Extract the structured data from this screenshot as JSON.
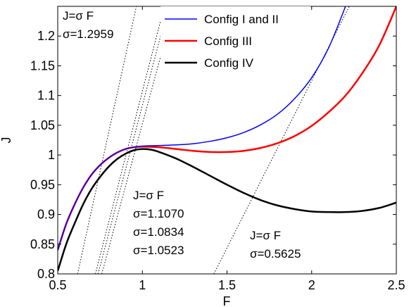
{
  "chart_data": {
    "type": "line",
    "xlabel": "F",
    "ylabel": "J",
    "xlim": [
      0.5,
      2.5
    ],
    "ylim": [
      0.8,
      1.25
    ],
    "xticks": [
      0.5,
      1,
      1.5,
      2,
      2.5
    ],
    "xtick_labels": [
      "0.5",
      "1",
      "1.5",
      "2",
      "2.5"
    ],
    "yticks": [
      0.8,
      0.85,
      0.9,
      0.95,
      1.0,
      1.05,
      1.1,
      1.15,
      1.2
    ],
    "ytick_labels": [
      "0.8",
      "0.85",
      "0.9",
      "0.95",
      "1",
      "1.05",
      "1.1",
      "1.15",
      "1.2"
    ],
    "legend_position": "top-right",
    "series": [
      {
        "name": "Config I and II",
        "color": "#0000ff",
        "x": [
          0.5,
          0.55,
          0.6,
          0.65,
          0.7,
          0.75,
          0.8,
          0.85,
          0.9,
          0.95,
          1.0,
          1.1,
          1.2,
          1.3,
          1.4,
          1.5,
          1.6,
          1.7,
          1.8,
          1.9,
          2.0,
          2.1,
          2.2
        ],
        "y": [
          0.84,
          0.884,
          0.917,
          0.945,
          0.967,
          0.983,
          0.995,
          1.004,
          1.01,
          1.013,
          1.015,
          1.016,
          1.017,
          1.019,
          1.023,
          1.029,
          1.038,
          1.051,
          1.069,
          1.095,
          1.13,
          1.18,
          1.25
        ]
      },
      {
        "name": "Config III",
        "color": "#ff0000",
        "x": [
          0.5,
          0.55,
          0.6,
          0.65,
          0.7,
          0.75,
          0.8,
          0.85,
          0.9,
          0.95,
          1.0,
          1.1,
          1.2,
          1.3,
          1.4,
          1.5,
          1.6,
          1.7,
          1.8,
          1.9,
          2.0,
          2.1,
          2.2,
          2.3,
          2.4,
          2.5
        ],
        "y": [
          0.84,
          0.884,
          0.917,
          0.945,
          0.967,
          0.983,
          0.995,
          1.004,
          1.01,
          1.013,
          1.014,
          1.013,
          1.01,
          1.007,
          1.005,
          1.005,
          1.007,
          1.012,
          1.02,
          1.032,
          1.049,
          1.072,
          1.1,
          1.138,
          1.185,
          1.25
        ]
      },
      {
        "name": "Config IV",
        "color": "#000000",
        "x": [
          0.5,
          0.55,
          0.6,
          0.65,
          0.7,
          0.75,
          0.8,
          0.85,
          0.9,
          0.95,
          1.0,
          1.05,
          1.1,
          1.2,
          1.3,
          1.4,
          1.5,
          1.6,
          1.7,
          1.8,
          1.9,
          2.0,
          2.1,
          2.2,
          2.3,
          2.4,
          2.5
        ],
        "y": [
          0.805,
          0.85,
          0.885,
          0.917,
          0.943,
          0.963,
          0.98,
          0.993,
          1.002,
          1.008,
          1.01,
          1.009,
          1.005,
          0.994,
          0.98,
          0.965,
          0.95,
          0.936,
          0.924,
          0.915,
          0.909,
          0.905,
          0.904,
          0.904,
          0.906,
          0.911,
          0.92
        ]
      }
    ],
    "reference_lines": [
      {
        "sigma": 1.2959,
        "style": "dotted"
      },
      {
        "sigma": 1.107,
        "style": "dotted"
      },
      {
        "sigma": 1.0834,
        "style": "dotted"
      },
      {
        "sigma": 1.0523,
        "style": "dotted"
      },
      {
        "sigma": 0.5625,
        "style": "dotted"
      }
    ],
    "annotations": [
      {
        "lines": [
          "J=σ F",
          "σ=1.2959"
        ],
        "position": "top-left"
      },
      {
        "lines": [
          "J=σ F",
          "σ=1.1070",
          "σ=1.0834",
          "σ=1.0523"
        ],
        "position": "bottom-center"
      },
      {
        "lines": [
          "J=σ F",
          "σ=0.5625"
        ],
        "position": "bottom-right"
      }
    ]
  }
}
